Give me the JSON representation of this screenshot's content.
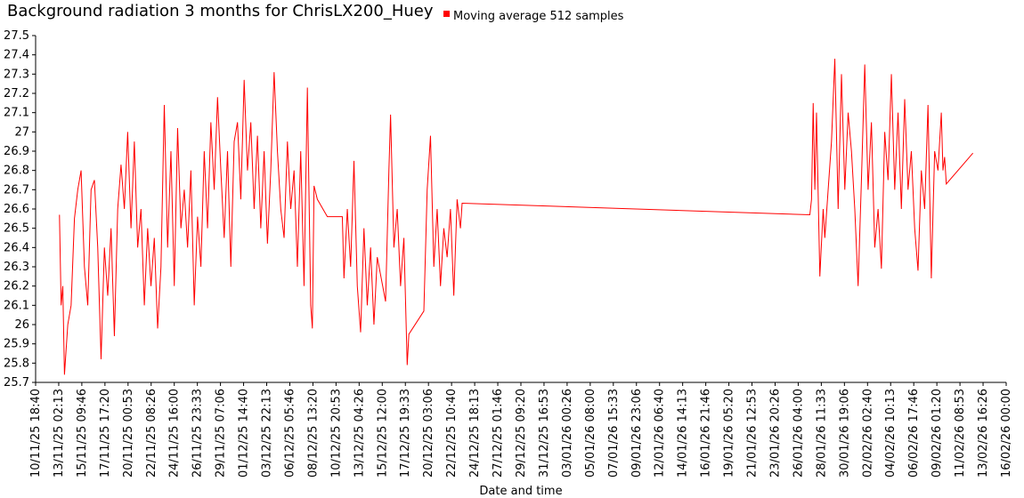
{
  "chart_data": {
    "type": "line",
    "title": "Background radiation 3 months for ChrisLX200_Huey",
    "x_label": "Date and time",
    "legend": "top",
    "grid": false,
    "xlim": [
      "10/11/25 18:40",
      "16/02/26 00:00"
    ],
    "xticks": [
      "10/11/25 18:40",
      "13/11/25 02:13",
      "15/11/25 09:46",
      "17/11/25 17:20",
      "20/11/25 00:53",
      "22/11/25 08:26",
      "24/11/25 16:00",
      "26/11/25 23:33",
      "29/11/25 07:06",
      "01/12/25 14:40",
      "03/12/25 22:13",
      "06/12/25 05:46",
      "08/12/25 13:20",
      "10/12/25 20:53",
      "13/12/25 04:26",
      "15/12/25 12:00",
      "17/12/25 19:33",
      "20/12/25 03:06",
      "22/12/25 10:40",
      "24/12/25 18:13",
      "27/12/25 01:46",
      "29/12/25 09:20",
      "31/12/25 16:53",
      "03/01/26 00:26",
      "05/01/26 08:00",
      "07/01/26 15:33",
      "09/01/26 23:06",
      "12/01/26 06:40",
      "14/01/26 14:13",
      "16/01/26 21:46",
      "19/01/26 05:20",
      "21/01/26 12:53",
      "23/01/26 20:26",
      "26/01/26 04:00",
      "28/01/26 11:33",
      "30/01/26 19:06",
      "02/02/26 02:40",
      "04/02/26 10:13",
      "06/02/26 17:46",
      "09/02/26 01:20",
      "11/02/26 08:53",
      "13/02/26 16:26",
      "16/02/26 00:00"
    ],
    "ylim": [
      25.7,
      27.5
    ],
    "yticks": [
      25.7,
      25.8,
      25.9,
      26,
      26.1,
      26.2,
      26.3,
      26.4,
      26.5,
      26.6,
      26.7,
      26.8,
      26.9,
      27,
      27.1,
      27.2,
      27.3,
      27.4,
      27.5
    ],
    "x": [
      "13/11/25 04:00",
      "13/11/25 08:00",
      "13/11/25 12:00",
      "13/11/25 16:00",
      "14/11/25 00:00",
      "14/11/25 08:00",
      "14/11/25 16:00",
      "15/11/25 00:00",
      "15/11/25 08:00",
      "15/11/25 16:00",
      "16/11/25 00:00",
      "16/11/25 08:00",
      "16/11/25 16:00",
      "17/11/25 00:00",
      "17/11/25 08:00",
      "17/11/25 16:00",
      "18/11/25 00:00",
      "18/11/25 08:00",
      "18/11/25 16:00",
      "19/11/25 00:00",
      "19/11/25 08:00",
      "19/11/25 16:00",
      "20/11/25 00:00",
      "20/11/25 08:00",
      "20/11/25 16:00",
      "21/11/25 00:00",
      "21/11/25 08:00",
      "21/11/25 16:00",
      "22/11/25 00:00",
      "22/11/25 08:00",
      "22/11/25 16:00",
      "23/11/25 00:00",
      "23/11/25 08:00",
      "23/11/25 16:00",
      "24/11/25 00:00",
      "24/11/25 08:00",
      "24/11/25 16:00",
      "25/11/25 00:00",
      "25/11/25 08:00",
      "25/11/25 16:00",
      "26/11/25 00:00",
      "26/11/25 08:00",
      "26/11/25 16:00",
      "27/11/25 00:00",
      "27/11/25 08:00",
      "27/11/25 16:00",
      "28/11/25 00:00",
      "28/11/25 08:00",
      "28/11/25 16:00",
      "29/11/25 00:00",
      "29/11/25 08:00",
      "29/11/25 16:00",
      "30/11/25 00:00",
      "30/11/25 08:00",
      "30/11/25 16:00",
      "01/12/25 00:00",
      "01/12/25 08:00",
      "01/12/25 16:00",
      "02/12/25 00:00",
      "02/12/25 08:00",
      "02/12/25 16:00",
      "03/12/25 00:00",
      "03/12/25 08:00",
      "03/12/25 16:00",
      "04/12/25 00:00",
      "04/12/25 08:00",
      "04/12/25 16:00",
      "05/12/25 00:00",
      "05/12/25 08:00",
      "05/12/25 16:00",
      "06/12/25 00:00",
      "06/12/25 08:00",
      "06/12/25 16:00",
      "07/12/25 00:00",
      "07/12/25 08:00",
      "07/12/25 16:00",
      "08/12/25 00:00",
      "08/12/25 08:00",
      "08/12/25 12:00",
      "08/12/25 16:00",
      "09/12/25 00:00",
      "10/12/25 00:00",
      "11/12/25 12:00",
      "11/12/25 16:00",
      "12/12/25 00:00",
      "12/12/25 08:00",
      "12/12/25 16:00",
      "13/12/25 00:00",
      "13/12/25 08:00",
      "13/12/25 16:00",
      "14/12/25 00:00",
      "14/12/25 08:00",
      "14/12/25 16:00",
      "15/12/25 00:00",
      "15/12/25 20:00",
      "16/12/25 04:00",
      "16/12/25 08:00",
      "16/12/25 16:00",
      "17/12/25 00:00",
      "17/12/25 08:00",
      "17/12/25 16:00",
      "18/12/25 00:00",
      "18/12/25 04:00",
      "19/12/25 16:00",
      "20/12/25 00:00",
      "20/12/25 08:00",
      "20/12/25 16:00",
      "21/12/25 00:00",
      "21/12/25 08:00",
      "21/12/25 16:00",
      "22/12/25 00:00",
      "22/12/25 08:00",
      "22/12/25 16:00",
      "23/12/25 00:00",
      "23/12/25 08:00",
      "23/12/25 12:00",
      "27/01/26 08:00",
      "27/01/26 12:00",
      "27/01/26 16:00",
      "27/01/26 20:00",
      "28/01/26 00:00",
      "28/01/26 08:00",
      "28/01/26 16:00",
      "28/01/26 20:00",
      "29/01/26 04:00",
      "29/01/26 12:00",
      "29/01/26 20:00",
      "30/01/26 04:00",
      "30/01/26 12:00",
      "30/01/26 20:00",
      "31/01/26 04:00",
      "31/01/26 12:00",
      "31/01/26 20:00",
      "01/02/26 04:00",
      "01/02/26 12:00",
      "01/02/26 20:00",
      "02/02/26 04:00",
      "02/02/26 12:00",
      "02/02/26 20:00",
      "03/02/26 04:00",
      "03/02/26 12:00",
      "03/02/26 20:00",
      "04/02/26 04:00",
      "04/02/26 12:00",
      "04/02/26 20:00",
      "05/02/26 04:00",
      "05/02/26 12:00",
      "05/02/26 20:00",
      "06/02/26 04:00",
      "06/02/26 12:00",
      "06/02/26 20:00",
      "07/02/26 04:00",
      "07/02/26 12:00",
      "07/02/26 20:00",
      "08/02/26 04:00",
      "08/02/26 12:00",
      "08/02/26 20:00",
      "09/02/26 04:00",
      "09/02/26 12:00",
      "09/02/26 16:00",
      "09/02/26 20:00",
      "10/02/26 00:00",
      "12/02/26 16:00"
    ],
    "series": [
      {
        "name": "Moving average 512 samples",
        "color": "#ff0000",
        "values": [
          26.57,
          26.1,
          26.2,
          25.74,
          26.0,
          26.1,
          26.55,
          26.7,
          26.8,
          26.3,
          26.1,
          26.7,
          26.75,
          26.4,
          25.82,
          26.4,
          26.15,
          26.5,
          25.94,
          26.6,
          26.83,
          26.6,
          27.0,
          26.5,
          26.95,
          26.4,
          26.6,
          26.1,
          26.5,
          26.2,
          26.45,
          25.98,
          26.3,
          27.14,
          26.4,
          26.9,
          26.2,
          27.02,
          26.5,
          26.7,
          26.4,
          26.8,
          26.1,
          26.56,
          26.3,
          26.9,
          26.5,
          27.05,
          26.7,
          27.18,
          26.8,
          26.45,
          26.9,
          26.3,
          26.95,
          27.05,
          26.65,
          27.27,
          26.8,
          27.05,
          26.6,
          26.98,
          26.5,
          26.9,
          26.42,
          26.8,
          27.31,
          26.9,
          26.6,
          26.45,
          26.95,
          26.6,
          26.8,
          26.3,
          26.9,
          26.2,
          27.23,
          26.1,
          25.98,
          26.72,
          26.65,
          26.56,
          26.56,
          26.24,
          26.6,
          26.3,
          26.85,
          26.2,
          25.96,
          26.5,
          26.1,
          26.4,
          26.0,
          26.35,
          26.12,
          26.8,
          27.09,
          26.4,
          26.6,
          26.2,
          26.45,
          25.79,
          25.95,
          26.07,
          26.7,
          26.98,
          26.3,
          26.6,
          26.2,
          26.5,
          26.35,
          26.6,
          26.15,
          26.65,
          26.5,
          26.63,
          26.57,
          26.65,
          27.15,
          26.7,
          27.1,
          26.25,
          26.6,
          26.45,
          26.7,
          26.95,
          27.38,
          26.6,
          27.3,
          26.7,
          27.1,
          26.9,
          26.6,
          26.2,
          26.75,
          27.35,
          26.7,
          27.05,
          26.4,
          26.6,
          26.29,
          27.0,
          26.75,
          27.3,
          26.7,
          27.1,
          26.6,
          27.17,
          26.7,
          26.9,
          26.5,
          26.28,
          26.8,
          26.6,
          27.14,
          26.24,
          26.9,
          26.8,
          27.1,
          26.8,
          26.87,
          26.73,
          26.89
        ]
      }
    ]
  }
}
